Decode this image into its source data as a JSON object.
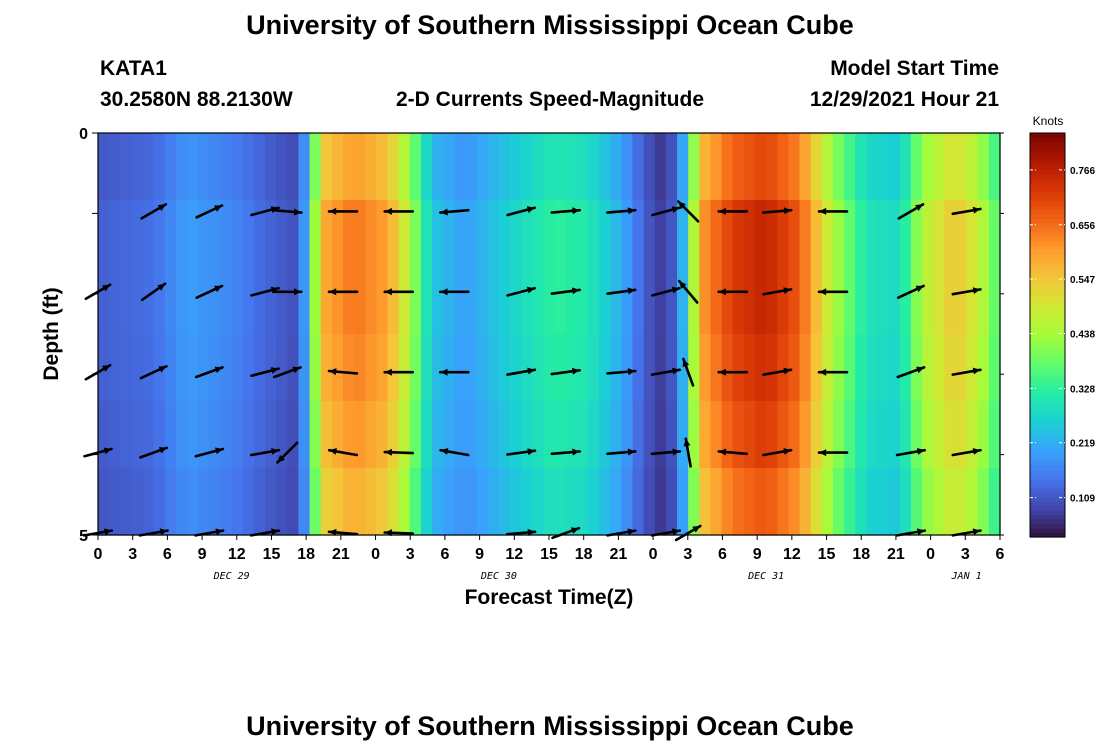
{
  "header": {
    "title": "University of Southern Mississippi Ocean Cube",
    "station_id": "KATA1",
    "station_location": "30.2580N  88.2130W",
    "plot_title": "2-D Currents Speed-Magnitude",
    "model_start_label": "Model Start Time",
    "model_start_value": "12/29/2021 Hour 21"
  },
  "footer": {
    "title": "University of Southern Mississippi Ocean Cube"
  },
  "colors": {
    "colormap": [
      "#30123b",
      "#4145ab",
      "#4675ed",
      "#39a2fc",
      "#1bcfd4",
      "#24eca6",
      "#61fc6c",
      "#a4fc3b",
      "#d1e834",
      "#f3c63a",
      "#fe9b2d",
      "#f36315",
      "#d93806",
      "#b11901",
      "#7a0402"
    ],
    "arrow": "#000000"
  },
  "chart_data": {
    "type": "heatmap",
    "xlabel": "Forecast Time(Z)",
    "ylabel": "Depth (ft)",
    "x_range_hours": [
      0,
      81
    ],
    "depth_range_ft": [
      0,
      5
    ],
    "x_tick_labels": [
      "0",
      "3",
      "6",
      "9",
      "12",
      "15",
      "18",
      "21",
      "0",
      "3",
      "6",
      "9",
      "12",
      "15",
      "18",
      "21",
      "0",
      "3",
      "6",
      "9",
      "12",
      "15",
      "18",
      "21",
      "0",
      "3",
      "6"
    ],
    "y_tick_labels": [
      "0",
      "5"
    ],
    "day_labels": [
      {
        "label": "DEC 29",
        "hour": 12
      },
      {
        "label": "DEC 30",
        "hour": 36
      },
      {
        "label": "DEC 31",
        "hour": 60
      },
      {
        "label": "JAN 1",
        "hour": 78
      }
    ],
    "colorbar": {
      "units": "Knots",
      "min": 0.03,
      "max": 0.84,
      "tick_values": [
        0.109,
        0.219,
        0.328,
        0.438,
        0.547,
        0.656,
        0.766
      ],
      "tick_labels": [
        "0.109",
        "0.219",
        "0.328",
        "0.438",
        "0.547",
        "0.656",
        "0.766"
      ]
    },
    "speed_profile_knots": [
      {
        "hour": 0,
        "speed": 0.12
      },
      {
        "hour": 5,
        "speed": 0.14
      },
      {
        "hour": 8,
        "speed": 0.2
      },
      {
        "hour": 12,
        "speed": 0.17
      },
      {
        "hour": 15,
        "speed": 0.13
      },
      {
        "hour": 18,
        "speed": 0.1
      },
      {
        "hour": 19,
        "speed": 0.28
      },
      {
        "hour": 20,
        "speed": 0.58
      },
      {
        "hour": 23,
        "speed": 0.65
      },
      {
        "hour": 26,
        "speed": 0.6
      },
      {
        "hour": 28,
        "speed": 0.45
      },
      {
        "hour": 30,
        "speed": 0.25
      },
      {
        "hour": 33,
        "speed": 0.2
      },
      {
        "hour": 37,
        "speed": 0.27
      },
      {
        "hour": 41,
        "speed": 0.33
      },
      {
        "hour": 44,
        "speed": 0.31
      },
      {
        "hour": 47,
        "speed": 0.22
      },
      {
        "hour": 49,
        "speed": 0.12
      },
      {
        "hour": 51,
        "speed": 0.07
      },
      {
        "hour": 52,
        "speed": 0.15
      },
      {
        "hour": 53,
        "speed": 0.3
      },
      {
        "hour": 54,
        "speed": 0.6
      },
      {
        "hour": 57,
        "speed": 0.72
      },
      {
        "hour": 60,
        "speed": 0.76
      },
      {
        "hour": 63,
        "speed": 0.68
      },
      {
        "hour": 66,
        "speed": 0.45
      },
      {
        "hour": 69,
        "speed": 0.3
      },
      {
        "hour": 72,
        "speed": 0.28
      },
      {
        "hour": 74,
        "speed": 0.45
      },
      {
        "hour": 77,
        "speed": 0.55
      },
      {
        "hour": 79,
        "speed": 0.48
      },
      {
        "hour": 81,
        "speed": 0.35
      }
    ],
    "depth_speed_factor": [
      0.93,
      1.0,
      1.0,
      0.98,
      0.95,
      0.9
    ],
    "arrow_depths_ft": [
      1,
      2,
      3,
      4,
      5
    ],
    "arrows": [
      {
        "hour": 0,
        "dir_deg": [
          null,
          30,
          30,
          15,
          10
        ]
      },
      {
        "hour": 5,
        "dir_deg": [
          30,
          35,
          25,
          20,
          10
        ]
      },
      {
        "hour": 10,
        "dir_deg": [
          25,
          25,
          20,
          15,
          10
        ]
      },
      {
        "hour": 15,
        "dir_deg": [
          15,
          15,
          15,
          10,
          10
        ]
      },
      {
        "hour": 17,
        "dir_deg": [
          -5,
          0,
          20,
          225,
          null
        ]
      },
      {
        "hour": 22,
        "dir_deg": [
          180,
          180,
          175,
          170,
          175
        ]
      },
      {
        "hour": 27,
        "dir_deg": [
          180,
          180,
          180,
          178,
          178
        ]
      },
      {
        "hour": 32,
        "dir_deg": [
          185,
          180,
          180,
          170,
          null
        ]
      },
      {
        "hour": 38,
        "dir_deg": [
          15,
          15,
          10,
          8,
          5
        ]
      },
      {
        "hour": 42,
        "dir_deg": [
          5,
          8,
          8,
          5,
          20
        ]
      },
      {
        "hour": 47,
        "dir_deg": [
          5,
          8,
          5,
          5,
          10
        ]
      },
      {
        "hour": 51,
        "dir_deg": [
          15,
          15,
          10,
          5,
          10
        ]
      },
      {
        "hour": 53,
        "dir_deg": [
          135,
          130,
          110,
          100,
          30
        ]
      },
      {
        "hour": 57,
        "dir_deg": [
          180,
          180,
          180,
          175,
          null
        ]
      },
      {
        "hour": 61,
        "dir_deg": [
          5,
          10,
          10,
          10,
          null
        ]
      },
      {
        "hour": 66,
        "dir_deg": [
          180,
          180,
          180,
          180,
          null
        ]
      },
      {
        "hour": 73,
        "dir_deg": [
          30,
          25,
          20,
          10,
          10
        ]
      },
      {
        "hour": 78,
        "dir_deg": [
          10,
          10,
          10,
          10,
          10
        ]
      }
    ],
    "grid": false,
    "legend_placement": "right"
  }
}
